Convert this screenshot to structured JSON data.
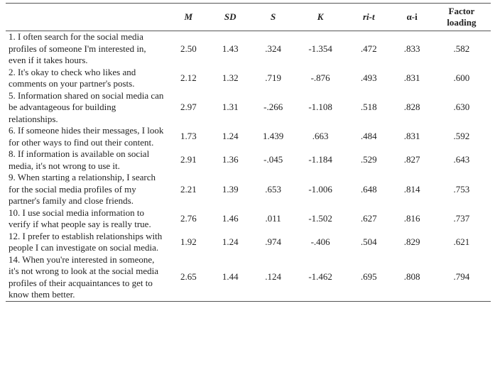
{
  "table": {
    "header": [
      "M",
      "SD",
      "S",
      "K",
      "ri-t",
      "α-i",
      "Factor loading"
    ],
    "rows": [
      [
        "1. I often search for the social media profiles of someone I'm interested in, even if it takes hours.",
        "2.50",
        "1.43",
        ".324",
        "-1.354",
        ".472",
        ".833",
        ".582"
      ],
      [
        "2. It's okay to check who likes and comments on your partner's posts.",
        "2.12",
        "1.32",
        ".719",
        "-.876",
        ".493",
        ".831",
        ".600"
      ],
      [
        "5. Information shared on social media can be advantageous for building relationships.",
        "2.97",
        "1.31",
        "-.266",
        "-1.108",
        ".518",
        ".828",
        ".630"
      ],
      [
        "6. If someone hides their messages, I look for other ways to find out their content.",
        "1.73",
        "1.24",
        "1.439",
        ".663",
        ".484",
        ".831",
        ".592"
      ],
      [
        "8. If information is available on social media, it's not wrong to use it.",
        "2.91",
        "1.36",
        "-.045",
        "-1.184",
        ".529",
        ".827",
        ".643"
      ],
      [
        "9. When starting a relationship, I search for the social media profiles of my partner's family and close friends.",
        "2.21",
        "1.39",
        ".653",
        "-1.006",
        ".648",
        ".814",
        ".753"
      ],
      [
        "10. I use social media information to verify if what people say is really true.",
        "2.76",
        "1.46",
        ".011",
        "-1.502",
        ".627",
        ".816",
        ".737"
      ],
      [
        "12. I prefer to establish relationships with people I can investigate on social media.",
        "1.92",
        "1.24",
        ".974",
        "-.406",
        ".504",
        ".829",
        ".621"
      ],
      [
        "14. When you're interested in someone, it's not wrong to look at the social media profiles of their acquaintances to get to know them better.",
        "2.65",
        "1.44",
        ".124",
        "-1.462",
        ".695",
        ".808",
        ".794"
      ]
    ]
  }
}
